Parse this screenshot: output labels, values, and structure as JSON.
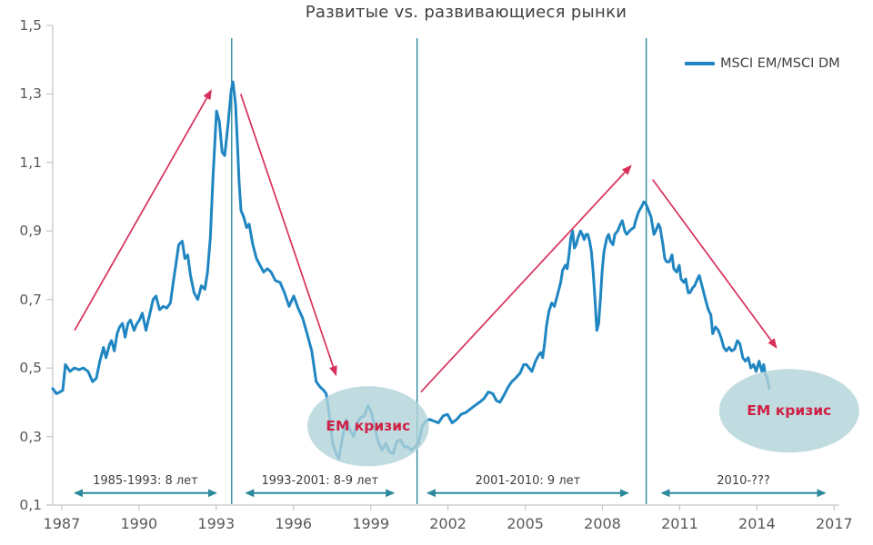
{
  "title": "Развитые vs. развивающиеся рынки",
  "legend": {
    "label": "MSCI EM/MSCI DM",
    "position": "top-right"
  },
  "colors": {
    "series": "#1f86c2",
    "vertical_divider": "#2f8a9c",
    "trend_arrow": "#d8305a",
    "period_arrow": "#2b8a9b",
    "ellipse_fill": "#b2d3da",
    "crisis_text": "#cf2045",
    "axis": "#c6c6c6",
    "title_text": "#3f3f3f",
    "tick_text": "#595959"
  },
  "chart_data": {
    "type": "line",
    "title": "Развитые vs. развивающиеся рынки",
    "legend_entries": [
      "MSCI EM/MSCI DM"
    ],
    "grid": "off",
    "xlim": [
      1986.65,
      2017.2
    ],
    "ylim": [
      0.1,
      1.5
    ],
    "x_ticks": [
      1987,
      1990,
      1993,
      1996,
      1999,
      2002,
      2005,
      2008,
      2011,
      2014,
      2017
    ],
    "x_tick_labels": [
      "1987",
      "1990",
      "1993",
      "1996",
      "1999",
      "2002",
      "2005",
      "2008",
      "2011",
      "2014",
      "2017"
    ],
    "y_ticks": [
      0.1,
      0.3,
      0.5,
      0.7,
      0.9,
      1.1,
      1.3,
      1.5
    ],
    "y_tick_labels": [
      "0,1",
      "0,3",
      "0,5",
      "0,7",
      "0,9",
      "1,1",
      "1,3",
      "1,5"
    ],
    "vertical_lines": [
      1993.6,
      2000.8,
      2009.7
    ],
    "trend_arrows": [
      {
        "direction": "up",
        "from": [
          1987.5,
          0.61
        ],
        "to": [
          1992.8,
          1.31
        ]
      },
      {
        "direction": "down",
        "from": [
          1993.95,
          1.3
        ],
        "to": [
          1997.65,
          0.48
        ]
      },
      {
        "direction": "up",
        "from": [
          2000.95,
          0.43
        ],
        "to": [
          2009.1,
          1.09
        ]
      },
      {
        "direction": "down",
        "from": [
          2009.95,
          1.05
        ],
        "to": [
          2014.75,
          0.56
        ]
      }
    ],
    "period_markers": [
      {
        "label": "1985-1993:  8 лет",
        "x_start": 1987.2,
        "x_end": 1993.3,
        "y": 0.135
      },
      {
        "label": "1993-2001: 8-9 лет",
        "x_start": 1993.85,
        "x_end": 2000.2,
        "y": 0.135
      },
      {
        "label": "2001-2010:  9 лет",
        "x_start": 2000.9,
        "x_end": 2009.3,
        "y": 0.135
      },
      {
        "label": "2010-???",
        "x_start": 2010.0,
        "x_end": 2016.95,
        "y": 0.135
      }
    ],
    "crisis_ellipses": [
      {
        "label": "EM кризис",
        "cx": 1998.9,
        "cy": 0.33,
        "rx_years": 2.36,
        "ry_value": 0.117
      },
      {
        "label": "EM кризис",
        "cx": 2015.25,
        "cy": 0.375,
        "rx_years": 2.72,
        "ry_value": 0.122
      }
    ],
    "series": [
      {
        "name": "MSCI EM/MSCI DM",
        "points": [
          [
            1986.65,
            0.44
          ],
          [
            1986.79,
            0.425
          ],
          [
            1986.93,
            0.43
          ],
          [
            1987.04,
            0.435
          ],
          [
            1987.14,
            0.51
          ],
          [
            1987.32,
            0.49
          ],
          [
            1987.49,
            0.5
          ],
          [
            1987.67,
            0.495
          ],
          [
            1987.84,
            0.5
          ],
          [
            1988.02,
            0.49
          ],
          [
            1988.2,
            0.46
          ],
          [
            1988.34,
            0.47
          ],
          [
            1988.48,
            0.52
          ],
          [
            1988.55,
            0.54
          ],
          [
            1988.62,
            0.56
          ],
          [
            1988.72,
            0.53
          ],
          [
            1988.86,
            0.57
          ],
          [
            1988.93,
            0.58
          ],
          [
            1989.04,
            0.55
          ],
          [
            1989.15,
            0.6
          ],
          [
            1989.25,
            0.62
          ],
          [
            1989.36,
            0.63
          ],
          [
            1989.46,
            0.59
          ],
          [
            1989.57,
            0.63
          ],
          [
            1989.67,
            0.64
          ],
          [
            1989.81,
            0.61
          ],
          [
            1989.92,
            0.63
          ],
          [
            1990.02,
            0.64
          ],
          [
            1990.13,
            0.66
          ],
          [
            1990.27,
            0.61
          ],
          [
            1990.41,
            0.655
          ],
          [
            1990.55,
            0.7
          ],
          [
            1990.66,
            0.71
          ],
          [
            1990.8,
            0.67
          ],
          [
            1990.94,
            0.68
          ],
          [
            1991.08,
            0.675
          ],
          [
            1991.22,
            0.69
          ],
          [
            1991.33,
            0.75
          ],
          [
            1991.43,
            0.8
          ],
          [
            1991.54,
            0.86
          ],
          [
            1991.68,
            0.87
          ],
          [
            1991.78,
            0.82
          ],
          [
            1991.89,
            0.83
          ],
          [
            1992.0,
            0.77
          ],
          [
            1992.14,
            0.72
          ],
          [
            1992.28,
            0.7
          ],
          [
            1992.42,
            0.74
          ],
          [
            1992.56,
            0.73
          ],
          [
            1992.66,
            0.78
          ],
          [
            1992.77,
            0.88
          ],
          [
            1992.87,
            1.05
          ],
          [
            1993.01,
            1.25
          ],
          [
            1993.12,
            1.22
          ],
          [
            1993.23,
            1.13
          ],
          [
            1993.33,
            1.12
          ],
          [
            1993.47,
            1.22
          ],
          [
            1993.58,
            1.31
          ],
          [
            1993.65,
            1.335
          ],
          [
            1993.75,
            1.27
          ],
          [
            1993.82,
            1.16
          ],
          [
            1993.89,
            1.04
          ],
          [
            1993.96,
            0.96
          ],
          [
            1994.07,
            0.94
          ],
          [
            1994.18,
            0.91
          ],
          [
            1994.28,
            0.92
          ],
          [
            1994.42,
            0.86
          ],
          [
            1994.56,
            0.82
          ],
          [
            1994.7,
            0.8
          ],
          [
            1994.84,
            0.78
          ],
          [
            1994.99,
            0.79
          ],
          [
            1995.13,
            0.78
          ],
          [
            1995.3,
            0.755
          ],
          [
            1995.48,
            0.75
          ],
          [
            1995.65,
            0.72
          ],
          [
            1995.83,
            0.68
          ],
          [
            1996.01,
            0.71
          ],
          [
            1996.18,
            0.675
          ],
          [
            1996.36,
            0.645
          ],
          [
            1996.53,
            0.6
          ],
          [
            1996.71,
            0.55
          ],
          [
            1996.88,
            0.46
          ],
          [
            1997.03,
            0.445
          ],
          [
            1997.17,
            0.435
          ],
          [
            1997.27,
            0.425
          ],
          [
            1997.38,
            0.37
          ],
          [
            1997.52,
            0.28
          ],
          [
            1997.66,
            0.25
          ],
          [
            1997.76,
            0.235
          ],
          [
            1997.9,
            0.295
          ],
          [
            1998.05,
            0.35
          ],
          [
            1998.19,
            0.32
          ],
          [
            1998.33,
            0.3
          ],
          [
            1998.47,
            0.34
          ],
          [
            1998.61,
            0.355
          ],
          [
            1998.75,
            0.36
          ],
          [
            1998.89,
            0.39
          ],
          [
            1999.03,
            0.37
          ],
          [
            1999.17,
            0.32
          ],
          [
            1999.31,
            0.28
          ],
          [
            1999.45,
            0.26
          ],
          [
            1999.59,
            0.28
          ],
          [
            1999.73,
            0.255
          ],
          [
            1999.87,
            0.25
          ],
          [
            2000.01,
            0.285
          ],
          [
            2000.16,
            0.29
          ],
          [
            2000.3,
            0.27
          ],
          [
            2000.44,
            0.27
          ],
          [
            2000.58,
            0.26
          ],
          [
            2000.72,
            0.27
          ],
          [
            2000.86,
            0.28
          ],
          [
            2001.0,
            0.33
          ],
          [
            2001.14,
            0.345
          ],
          [
            2001.28,
            0.35
          ],
          [
            2001.46,
            0.345
          ],
          [
            2001.63,
            0.34
          ],
          [
            2001.81,
            0.36
          ],
          [
            2001.98,
            0.365
          ],
          [
            2002.16,
            0.34
          ],
          [
            2002.34,
            0.35
          ],
          [
            2002.51,
            0.365
          ],
          [
            2002.69,
            0.37
          ],
          [
            2002.86,
            0.38
          ],
          [
            2003.04,
            0.39
          ],
          [
            2003.22,
            0.4
          ],
          [
            2003.39,
            0.41
          ],
          [
            2003.57,
            0.43
          ],
          [
            2003.74,
            0.425
          ],
          [
            2003.88,
            0.405
          ],
          [
            2004.02,
            0.4
          ],
          [
            2004.17,
            0.42
          ],
          [
            2004.34,
            0.445
          ],
          [
            2004.48,
            0.46
          ],
          [
            2004.62,
            0.47
          ],
          [
            2004.8,
            0.485
          ],
          [
            2004.94,
            0.51
          ],
          [
            2005.05,
            0.51
          ],
          [
            2005.15,
            0.5
          ],
          [
            2005.26,
            0.49
          ],
          [
            2005.4,
            0.52
          ],
          [
            2005.54,
            0.54
          ],
          [
            2005.61,
            0.545
          ],
          [
            2005.68,
            0.53
          ],
          [
            2005.75,
            0.57
          ],
          [
            2005.82,
            0.62
          ],
          [
            2005.92,
            0.665
          ],
          [
            2006.03,
            0.69
          ],
          [
            2006.13,
            0.68
          ],
          [
            2006.24,
            0.71
          ],
          [
            2006.38,
            0.75
          ],
          [
            2006.45,
            0.785
          ],
          [
            2006.56,
            0.8
          ],
          [
            2006.63,
            0.79
          ],
          [
            2006.7,
            0.83
          ],
          [
            2006.77,
            0.88
          ],
          [
            2006.84,
            0.9
          ],
          [
            2006.91,
            0.85
          ],
          [
            2006.98,
            0.86
          ],
          [
            2007.05,
            0.88
          ],
          [
            2007.15,
            0.9
          ],
          [
            2007.22,
            0.89
          ],
          [
            2007.29,
            0.875
          ],
          [
            2007.36,
            0.89
          ],
          [
            2007.43,
            0.89
          ],
          [
            2007.5,
            0.87
          ],
          [
            2007.57,
            0.84
          ],
          [
            2007.64,
            0.78
          ],
          [
            2007.71,
            0.7
          ],
          [
            2007.78,
            0.61
          ],
          [
            2007.85,
            0.63
          ],
          [
            2007.92,
            0.7
          ],
          [
            2007.99,
            0.785
          ],
          [
            2008.06,
            0.84
          ],
          [
            2008.17,
            0.88
          ],
          [
            2008.24,
            0.89
          ],
          [
            2008.31,
            0.87
          ],
          [
            2008.41,
            0.86
          ],
          [
            2008.48,
            0.89
          ],
          [
            2008.59,
            0.9
          ],
          [
            2008.7,
            0.92
          ],
          [
            2008.77,
            0.93
          ],
          [
            2008.87,
            0.9
          ],
          [
            2008.94,
            0.89
          ],
          [
            2009.05,
            0.9
          ],
          [
            2009.12,
            0.905
          ],
          [
            2009.22,
            0.91
          ],
          [
            2009.29,
            0.93
          ],
          [
            2009.4,
            0.955
          ],
          [
            2009.51,
            0.97
          ],
          [
            2009.61,
            0.985
          ],
          [
            2009.68,
            0.98
          ],
          [
            2009.79,
            0.96
          ],
          [
            2009.89,
            0.94
          ],
          [
            2010.0,
            0.89
          ],
          [
            2010.07,
            0.9
          ],
          [
            2010.17,
            0.92
          ],
          [
            2010.24,
            0.91
          ],
          [
            2010.35,
            0.86
          ],
          [
            2010.42,
            0.82
          ],
          [
            2010.49,
            0.81
          ],
          [
            2010.6,
            0.81
          ],
          [
            2010.7,
            0.83
          ],
          [
            2010.77,
            0.79
          ],
          [
            2010.88,
            0.78
          ],
          [
            2010.98,
            0.8
          ],
          [
            2011.05,
            0.76
          ],
          [
            2011.16,
            0.75
          ],
          [
            2011.23,
            0.76
          ],
          [
            2011.33,
            0.72
          ],
          [
            2011.4,
            0.72
          ],
          [
            2011.51,
            0.735
          ],
          [
            2011.58,
            0.74
          ],
          [
            2011.69,
            0.76
          ],
          [
            2011.76,
            0.77
          ],
          [
            2011.9,
            0.73
          ],
          [
            2012.0,
            0.7
          ],
          [
            2012.11,
            0.67
          ],
          [
            2012.21,
            0.655
          ],
          [
            2012.28,
            0.6
          ],
          [
            2012.39,
            0.62
          ],
          [
            2012.5,
            0.61
          ],
          [
            2012.6,
            0.59
          ],
          [
            2012.71,
            0.56
          ],
          [
            2012.81,
            0.55
          ],
          [
            2012.92,
            0.56
          ],
          [
            2013.02,
            0.55
          ],
          [
            2013.13,
            0.555
          ],
          [
            2013.24,
            0.58
          ],
          [
            2013.34,
            0.57
          ],
          [
            2013.45,
            0.53
          ],
          [
            2013.55,
            0.52
          ],
          [
            2013.66,
            0.53
          ],
          [
            2013.76,
            0.5
          ],
          [
            2013.87,
            0.51
          ],
          [
            2013.97,
            0.49
          ],
          [
            2014.08,
            0.52
          ],
          [
            2014.19,
            0.49
          ],
          [
            2014.26,
            0.51
          ],
          [
            2014.33,
            0.48
          ],
          [
            2014.4,
            0.47
          ],
          [
            2014.48,
            0.44
          ]
        ]
      }
    ]
  }
}
